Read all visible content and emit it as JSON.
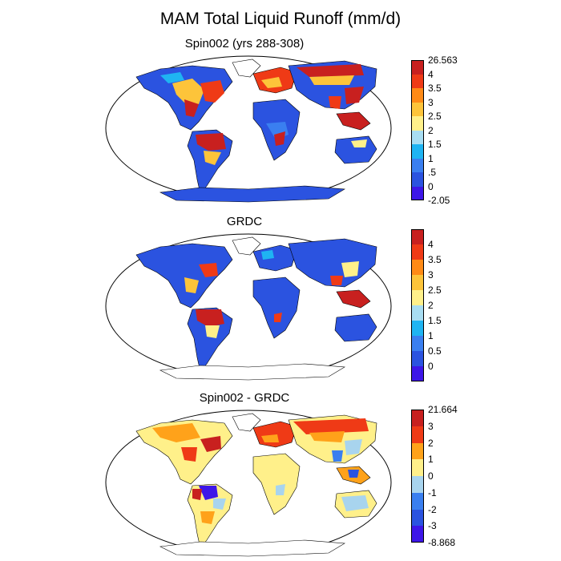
{
  "title": "MAM Total Liquid Runoff (mm/d)",
  "panels": [
    {
      "subtitle": "Spin002 (yrs 288-308)",
      "colorbar": {
        "colors": [
          "#3d16e8",
          "#2b53e0",
          "#3a7ff0",
          "#1fb4f2",
          "#a8ddf2",
          "#fff08a",
          "#fdc43a",
          "#ff8a16",
          "#ef3a16",
          "#c8201f"
        ],
        "labels": [
          "26.563",
          "4",
          "3.5",
          "3",
          "2.5",
          "2",
          "1.5",
          "1",
          ".5",
          "0",
          "-2.05"
        ]
      }
    },
    {
      "subtitle": "GRDC",
      "colorbar": {
        "colors": [
          "#3d16e8",
          "#2b53e0",
          "#3a7ff0",
          "#1fb4f2",
          "#a8ddf2",
          "#fff08a",
          "#fdc43a",
          "#ff8a16",
          "#ef3a16",
          "#c8201f"
        ],
        "labels": [
          "4",
          "3.5",
          "3",
          "2.5",
          "2",
          "1.5",
          "1",
          "0.5",
          "0"
        ]
      }
    },
    {
      "subtitle": "Spin002 - GRDC",
      "colorbar": {
        "colors": [
          "#3d16e8",
          "#2b53e0",
          "#3a7ff0",
          "#a8d4ee",
          "#fff08a",
          "#ffa21a",
          "#ef3a16",
          "#c8201f"
        ],
        "labels": [
          "21.664",
          "3",
          "2",
          "1",
          "0",
          "-1",
          "-2",
          "-3",
          "-8.868"
        ]
      }
    }
  ]
}
